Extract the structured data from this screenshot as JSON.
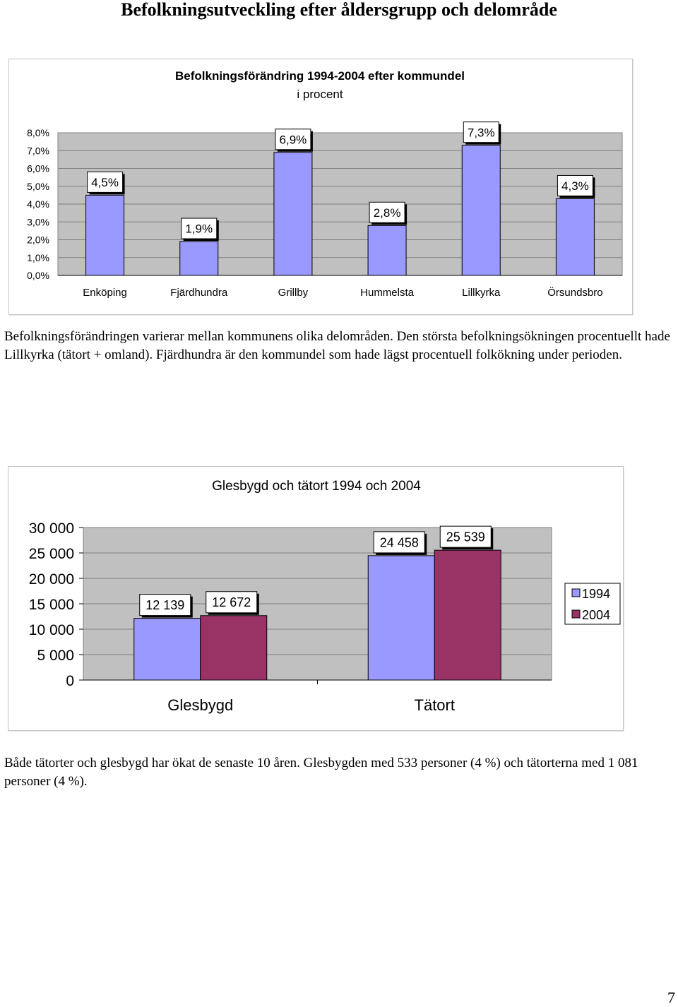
{
  "page": {
    "heading": "Befolkningsutveckling efter åldersgrupp och delområde",
    "paragraph1": "Befolkningsförändringen varierar mellan kommunens olika delområden. Den största befolkningsökningen procentuellt hade Lillkyrka (tätort + omland). Fjärdhundra är den kommundel som hade lägst procentuell folkökning under perioden.",
    "paragraph2": "Både tätorter och glesbygd har ökat de senaste 10 åren. Glesbygden med 533 personer (4 %) och tätorterna med 1 081 personer (4 %).",
    "page_number": "7"
  },
  "colors": {
    "bar_1994": "#9999ff",
    "bar_2004": "#993366",
    "plot_bg": "#c0c0c0"
  },
  "chart_data": [
    {
      "type": "bar",
      "title": "Befolkningsförändring 1994-2004 efter kommundel",
      "subtitle": "i procent",
      "categories": [
        "Enköping",
        "Fjärdhundra",
        "Grillby",
        "Hummelsta",
        "Lillkyrka",
        "Örsundsbro"
      ],
      "values": [
        4.5,
        1.9,
        6.9,
        2.8,
        7.3,
        4.3
      ],
      "data_labels": [
        "4,5%",
        "1,9%",
        "6,9%",
        "2,8%",
        "7,3%",
        "4,3%"
      ],
      "y_ticks": [
        "0,0%",
        "1,0%",
        "2,0%",
        "3,0%",
        "4,0%",
        "5,0%",
        "6,0%",
        "7,0%",
        "8,0%"
      ],
      "ylim": [
        0,
        8
      ],
      "grid": true,
      "legend": "none"
    },
    {
      "type": "bar",
      "title": "Glesbygd och tätort 1994 och 2004",
      "categories": [
        "Glesbygd",
        "Tätort"
      ],
      "series": [
        {
          "name": "1994",
          "values": [
            12139,
            24458
          ],
          "labels": [
            "12 139",
            "24 458"
          ]
        },
        {
          "name": "2004",
          "values": [
            12672,
            25539
          ],
          "labels": [
            "12 672",
            "25 539"
          ]
        }
      ],
      "y_ticks": [
        "0",
        "5 000",
        "10 000",
        "15 000",
        "20 000",
        "25 000",
        "30 000"
      ],
      "ylim": [
        0,
        30000
      ],
      "grid": true,
      "legend": "right"
    }
  ]
}
